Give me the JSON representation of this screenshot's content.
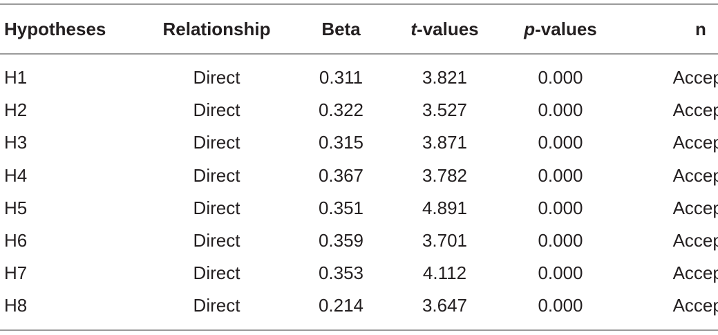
{
  "table": {
    "headers": {
      "hypotheses": "Hypotheses",
      "relationship": "Relationship",
      "beta": "Beta",
      "t_values_prefix": "t",
      "t_values_suffix": "-values",
      "p_values_prefix": "p",
      "p_values_suffix": "-values",
      "n": "n"
    },
    "rows": [
      {
        "hypothesis": "H1",
        "relationship": "Direct",
        "beta": "0.311",
        "t_value": "3.821",
        "p_value": "0.000",
        "n": "Accepted"
      },
      {
        "hypothesis": "H2",
        "relationship": "Direct",
        "beta": "0.322",
        "t_value": "3.527",
        "p_value": "0.000",
        "n": "Accepted"
      },
      {
        "hypothesis": "H3",
        "relationship": "Direct",
        "beta": "0.315",
        "t_value": "3.871",
        "p_value": "0.000",
        "n": "Accepted"
      },
      {
        "hypothesis": "H4",
        "relationship": "Direct",
        "beta": "0.367",
        "t_value": "3.782",
        "p_value": "0.000",
        "n": "Accepted"
      },
      {
        "hypothesis": "H5",
        "relationship": "Direct",
        "beta": "0.351",
        "t_value": "4.891",
        "p_value": "0.000",
        "n": "Accepted"
      },
      {
        "hypothesis": "H6",
        "relationship": "Direct",
        "beta": "0.359",
        "t_value": "3.701",
        "p_value": "0.000",
        "n": "Accepted"
      },
      {
        "hypothesis": "H7",
        "relationship": "Direct",
        "beta": "0.353",
        "t_value": "4.112",
        "p_value": "0.000",
        "n": "Accepted"
      },
      {
        "hypothesis": "H8",
        "relationship": "Direct",
        "beta": "0.214",
        "t_value": "3.647",
        "p_value": "0.000",
        "n": "Accepted"
      }
    ]
  }
}
